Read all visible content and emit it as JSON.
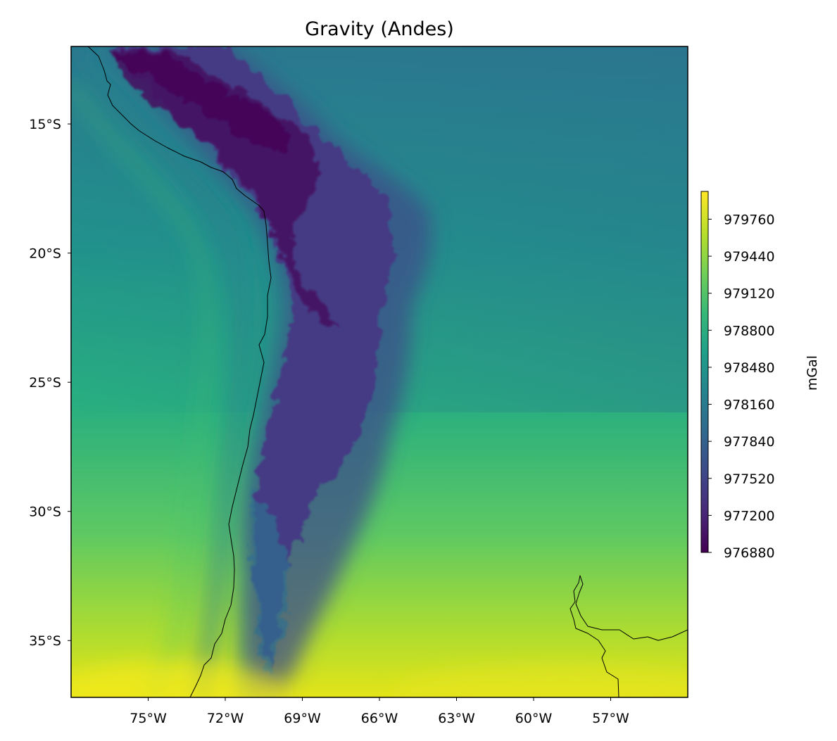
{
  "chart_data": {
    "type": "heatmap",
    "title": "Gravity (Andes)",
    "extent": {
      "lon_range": [
        -78.0,
        -54.0
      ],
      "lat_range": [
        -37.2,
        -12.0
      ]
    },
    "x_ticks": [
      {
        "value": -75,
        "label": "75°W"
      },
      {
        "value": -72,
        "label": "72°W"
      },
      {
        "value": -69,
        "label": "69°W"
      },
      {
        "value": -66,
        "label": "66°W"
      },
      {
        "value": -63,
        "label": "63°W"
      },
      {
        "value": -60,
        "label": "60°W"
      },
      {
        "value": -57,
        "label": "57°W"
      }
    ],
    "y_ticks": [
      {
        "value": -15,
        "label": "15°S"
      },
      {
        "value": -20,
        "label": "20°S"
      },
      {
        "value": -25,
        "label": "25°S"
      },
      {
        "value": -30,
        "label": "30°S"
      },
      {
        "value": -35,
        "label": "35°S"
      }
    ],
    "colorbar": {
      "label": "mGal",
      "colormap": "viridis",
      "range": [
        976880,
        980000
      ],
      "ticks": [
        976880,
        977200,
        977520,
        977840,
        978160,
        978480,
        978800,
        979120,
        979440,
        979760
      ]
    },
    "features": [
      {
        "name": "Andes low-gravity belt",
        "min_value": 976880
      },
      {
        "name": "coastline"
      }
    ]
  }
}
